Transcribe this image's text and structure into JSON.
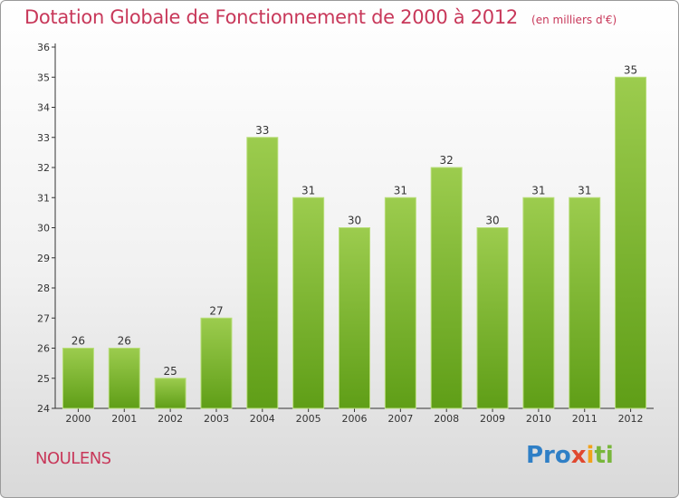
{
  "title": "Dotation Globale de Fonctionnement de 2000 à 2012",
  "subtitle": "(en milliers d'€)",
  "commune": "NOULENS",
  "logo": {
    "p1": "Pro",
    "p2": "x",
    "p3": "i",
    "p4": "ti"
  },
  "colors": {
    "bar_light": "#9ccc4e",
    "bar_dark": "#5f9e17",
    "title": "#c8385a"
  },
  "chart_data": {
    "type": "bar",
    "categories": [
      "2000",
      "2001",
      "2002",
      "2003",
      "2004",
      "2005",
      "2006",
      "2007",
      "2008",
      "2009",
      "2010",
      "2011",
      "2012"
    ],
    "values": [
      26,
      26,
      25,
      27,
      33,
      31,
      30,
      31,
      32,
      30,
      31,
      31,
      35
    ],
    "ylim": [
      24,
      36
    ],
    "yticks": [
      24,
      25,
      26,
      27,
      28,
      29,
      30,
      31,
      32,
      33,
      34,
      35,
      36
    ],
    "grid": false,
    "xlabel": "",
    "ylabel": ""
  }
}
